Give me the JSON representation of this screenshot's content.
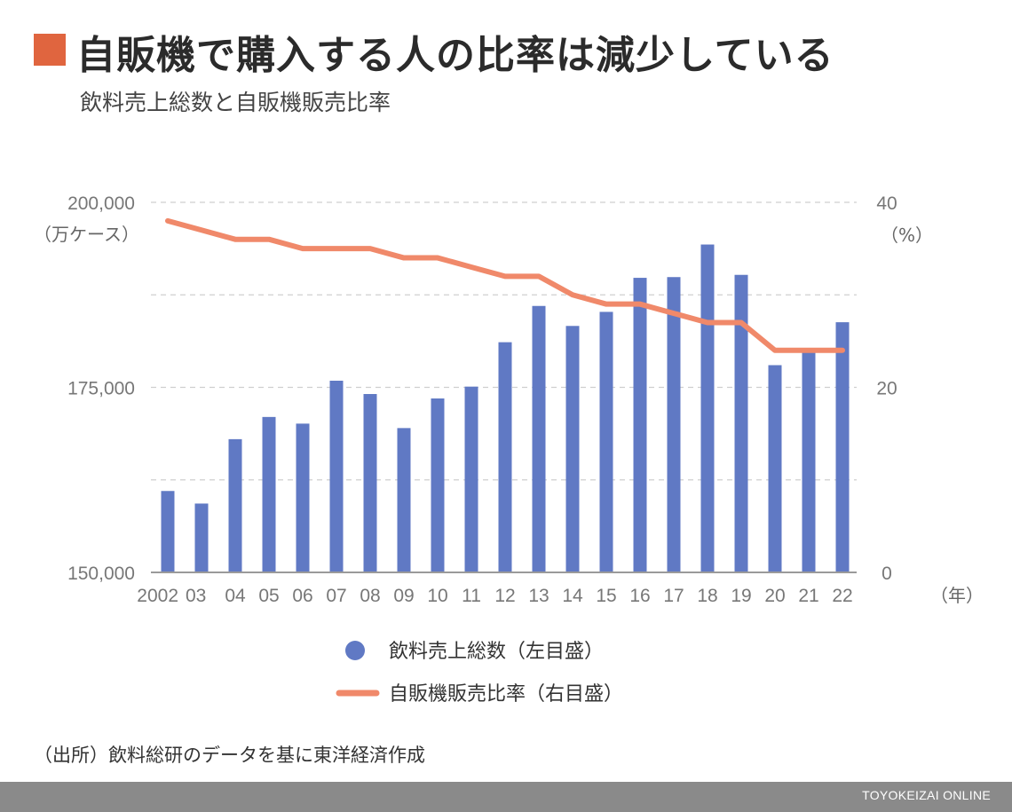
{
  "header": {
    "title": "自販機で購入する人の比率は減少している",
    "subtitle": "飲料売上総数と自販機販売比率",
    "accent_color": "#e0653f"
  },
  "source": "（出所）飲料総研のデータを基に東洋経済作成",
  "footer": {
    "brand": "TOYOKEIZAI ONLINE",
    "background": "#8a8a8a"
  },
  "chart_data": {
    "type": "bar",
    "categories": [
      "2002",
      "03",
      "04",
      "05",
      "06",
      "07",
      "08",
      "09",
      "10",
      "11",
      "12",
      "13",
      "14",
      "15",
      "16",
      "17",
      "18",
      "19",
      "20",
      "21",
      "22"
    ],
    "x_unit": "（年）",
    "series": [
      {
        "name": "飲料売上総数（左目盛）",
        "type": "bar",
        "axis": "left",
        "color": "#6079c4",
        "values": [
          161000,
          159300,
          168000,
          171000,
          170100,
          175900,
          174100,
          169500,
          173500,
          175100,
          181100,
          186000,
          183300,
          185200,
          189800,
          189900,
          194300,
          190200,
          178000,
          180000,
          183800
        ]
      },
      {
        "name": "自販機販売比率（右目盛）",
        "type": "line",
        "axis": "right",
        "color": "#f0896a",
        "values": [
          38,
          37,
          36,
          36,
          35,
          35,
          35,
          34,
          34,
          33,
          32,
          32,
          30,
          29,
          29,
          28,
          27,
          27,
          24,
          24,
          24
        ]
      }
    ],
    "y_left": {
      "ticks": [
        "150,000",
        "175,000",
        "200,000"
      ],
      "range": [
        150000,
        200000
      ],
      "unit": "（万ケース）"
    },
    "y_right": {
      "ticks": [
        "0",
        "20",
        "40"
      ],
      "range": [
        0,
        40
      ],
      "unit": "（%）"
    },
    "grid": "horizontal dashed",
    "legend": "bottom-center"
  }
}
